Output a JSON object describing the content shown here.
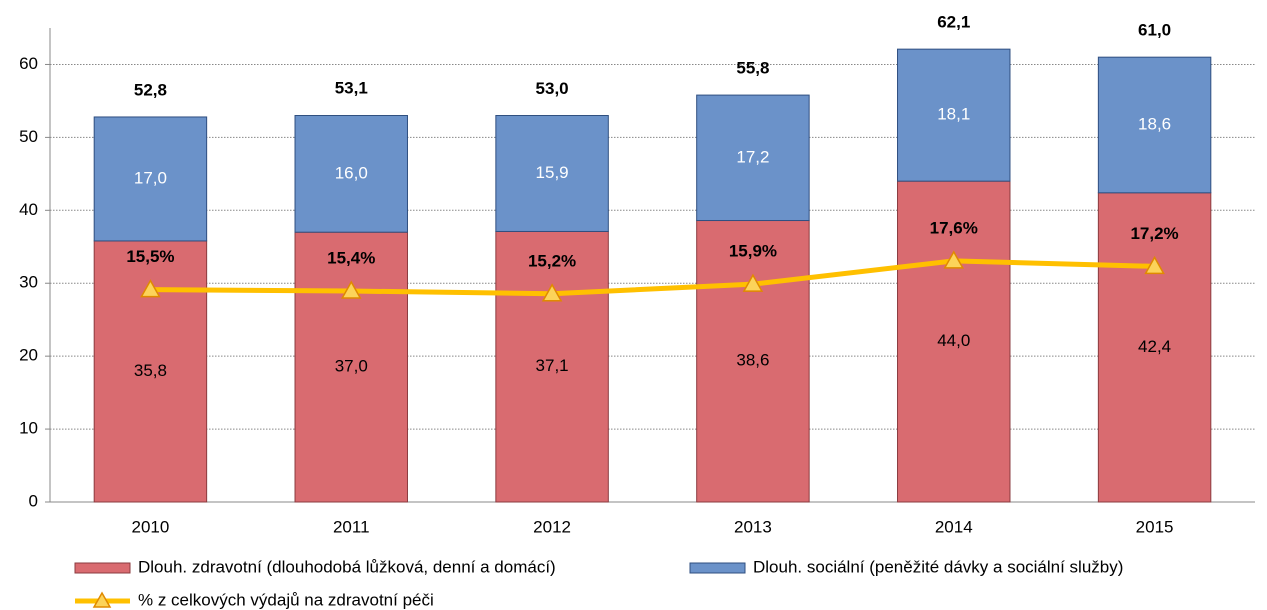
{
  "chart_data": {
    "type": "bar",
    "stacked": true,
    "categories": [
      "2010",
      "2011",
      "2012",
      "2013",
      "2014",
      "2015"
    ],
    "series": [
      {
        "name": "Dlouh. zdravotní (dlouhodobá lůžková, denní a domácí)",
        "type": "bar",
        "color": "#d96b70",
        "edge": "#8b3b3f",
        "values": [
          35.8,
          37.0,
          37.1,
          38.6,
          44.0,
          42.4
        ],
        "value_labels": [
          "35,8",
          "37,0",
          "37,1",
          "38,6",
          "44,0",
          "42,4"
        ],
        "label_color": "#000000"
      },
      {
        "name": "Dlouh. sociální (peněžité dávky a sociální služby)",
        "type": "bar",
        "color": "#6b92c9",
        "edge": "#2f4f80",
        "values": [
          17.0,
          16.0,
          15.9,
          17.2,
          18.1,
          18.6
        ],
        "value_labels": [
          "17,0",
          "16,0",
          "15,9",
          "17,2",
          "18,1",
          "18,6"
        ],
        "label_color": "#ffffff"
      },
      {
        "name": "% z celkových výdajů na zdravotní péči",
        "type": "line",
        "axis": "y2",
        "color": "#ffc000",
        "marker_color": "#fcd35a",
        "marker_edge": "#e08a00",
        "values": [
          15.5,
          15.4,
          15.2,
          15.9,
          17.6,
          17.2
        ],
        "value_labels": [
          "15,5%",
          "15,4%",
          "15,2%",
          "15,9%",
          "17,6%",
          "17,2%"
        ]
      }
    ],
    "totals": [
      52.8,
      53.1,
      53.0,
      55.8,
      62.1,
      61.0
    ],
    "total_labels": [
      "52,8",
      "53,1",
      "53,0",
      "55,8",
      "62,1",
      "61,0"
    ],
    "ylim": [
      0,
      65
    ],
    "yticks": [
      0,
      10,
      20,
      30,
      40,
      50,
      60
    ],
    "y2lim": [
      0,
      34.6
    ],
    "grid": true,
    "legend": "bottom"
  }
}
